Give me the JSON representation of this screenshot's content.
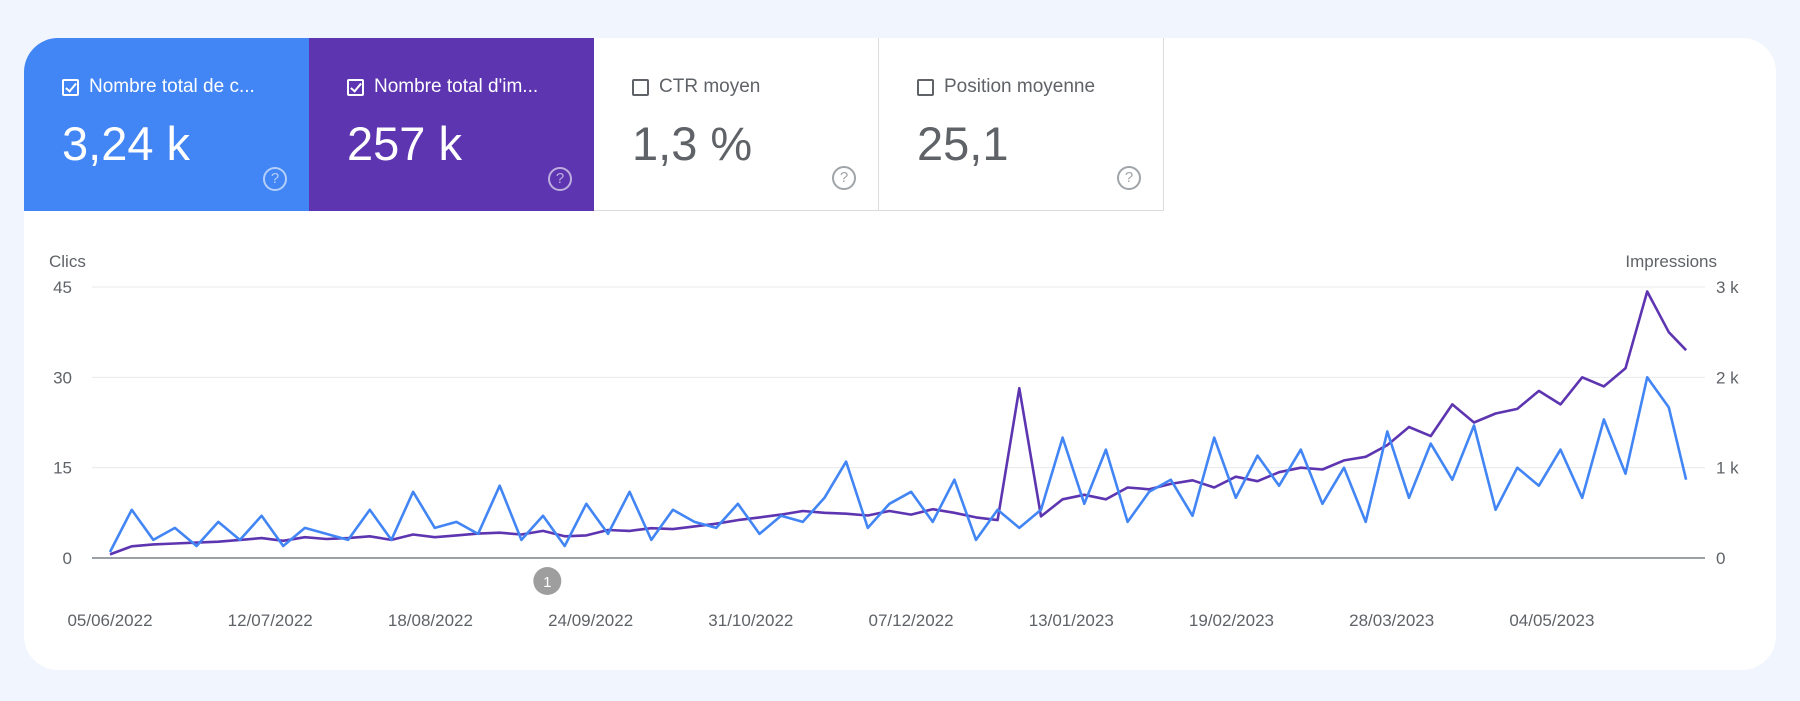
{
  "metrics": [
    {
      "label": "Nombre total de c...",
      "value": "3,24 k",
      "checked": true,
      "color": "#4285f4"
    },
    {
      "label": "Nombre total d'im...",
      "value": "257 k",
      "checked": true,
      "color": "#5e35b1"
    },
    {
      "label": "CTR moyen",
      "value": "1,3 %",
      "checked": false
    },
    {
      "label": "Position moyenne",
      "value": "25,1",
      "checked": false
    }
  ],
  "help_icon": "help-circle-icon",
  "chart_data": {
    "type": "line",
    "left_axis": {
      "label": "Clics",
      "range": [
        0,
        45
      ],
      "ticks": [
        "0",
        "15",
        "30",
        "45"
      ],
      "tick_values": [
        0,
        15,
        30,
        45
      ]
    },
    "right_axis": {
      "label": "Impressions",
      "range": [
        0,
        3000
      ],
      "ticks": [
        "0",
        "1 k",
        "2 k",
        "3 k"
      ],
      "tick_values": [
        0,
        1000,
        2000,
        3000
      ]
    },
    "x_tick_labels": [
      "05/06/2022",
      "12/07/2022",
      "18/08/2022",
      "24/09/2022",
      "31/10/2022",
      "07/12/2022",
      "13/01/2023",
      "19/02/2023",
      "28/03/2023",
      "04/05/2023"
    ],
    "grid": true,
    "annotation": {
      "label": "1",
      "date": "2022-09-14"
    },
    "x": [
      "2022-06-05",
      "2022-06-10",
      "2022-06-15",
      "2022-06-20",
      "2022-06-25",
      "2022-06-30",
      "2022-07-05",
      "2022-07-10",
      "2022-07-15",
      "2022-07-20",
      "2022-07-25",
      "2022-07-30",
      "2022-08-04",
      "2022-08-09",
      "2022-08-14",
      "2022-08-19",
      "2022-08-24",
      "2022-08-29",
      "2022-09-03",
      "2022-09-08",
      "2022-09-13",
      "2022-09-18",
      "2022-09-23",
      "2022-09-28",
      "2022-10-03",
      "2022-10-08",
      "2022-10-13",
      "2022-10-18",
      "2022-10-23",
      "2022-10-28",
      "2022-11-02",
      "2022-11-07",
      "2022-11-12",
      "2022-11-17",
      "2022-11-22",
      "2022-11-27",
      "2022-12-02",
      "2022-12-07",
      "2022-12-12",
      "2022-12-17",
      "2022-12-22",
      "2022-12-27",
      "2023-01-01",
      "2023-01-06",
      "2023-01-11",
      "2023-01-16",
      "2023-01-21",
      "2023-01-26",
      "2023-01-31",
      "2023-02-05",
      "2023-02-10",
      "2023-02-15",
      "2023-02-20",
      "2023-02-25",
      "2023-03-02",
      "2023-03-07",
      "2023-03-12",
      "2023-03-17",
      "2023-03-22",
      "2023-03-27",
      "2023-04-01",
      "2023-04-06",
      "2023-04-11",
      "2023-04-16",
      "2023-04-21",
      "2023-04-26",
      "2023-05-01",
      "2023-05-06",
      "2023-05-11",
      "2023-05-16",
      "2023-05-21",
      "2023-05-26",
      "2023-05-31",
      "2023-06-04"
    ],
    "series": [
      {
        "name": "Clics",
        "axis": "left",
        "color": "#4285f4",
        "values": [
          1,
          8,
          3,
          5,
          2,
          6,
          3,
          7,
          2,
          5,
          4,
          3,
          8,
          3,
          11,
          5,
          6,
          4,
          12,
          3,
          7,
          2,
          9,
          4,
          11,
          3,
          8,
          6,
          5,
          9,
          4,
          7,
          6,
          10,
          16,
          5,
          9,
          11,
          6,
          13,
          3,
          8,
          5,
          8,
          20,
          9,
          18,
          6,
          11,
          13,
          7,
          20,
          10,
          17,
          12,
          18,
          9,
          15,
          6,
          21,
          10,
          19,
          13,
          22,
          8,
          15,
          12,
          18,
          10,
          23,
          14,
          30,
          25,
          13
        ]
      },
      {
        "name": "Impressions",
        "axis": "right",
        "color": "#5e35b1",
        "values": [
          40,
          130,
          150,
          160,
          170,
          180,
          200,
          220,
          190,
          230,
          210,
          220,
          240,
          200,
          260,
          230,
          250,
          270,
          280,
          260,
          300,
          240,
          250,
          310,
          300,
          330,
          320,
          350,
          380,
          420,
          450,
          480,
          520,
          500,
          490,
          470,
          520,
          480,
          540,
          500,
          450,
          420,
          1880,
          460,
          650,
          700,
          650,
          780,
          760,
          820,
          860,
          780,
          900,
          850,
          950,
          1000,
          980,
          1080,
          1120,
          1250,
          1450,
          1350,
          1700,
          1500,
          1600,
          1650,
          1850,
          1700,
          2000,
          1900,
          2100,
          2950,
          2500,
          2300
        ]
      }
    ]
  }
}
